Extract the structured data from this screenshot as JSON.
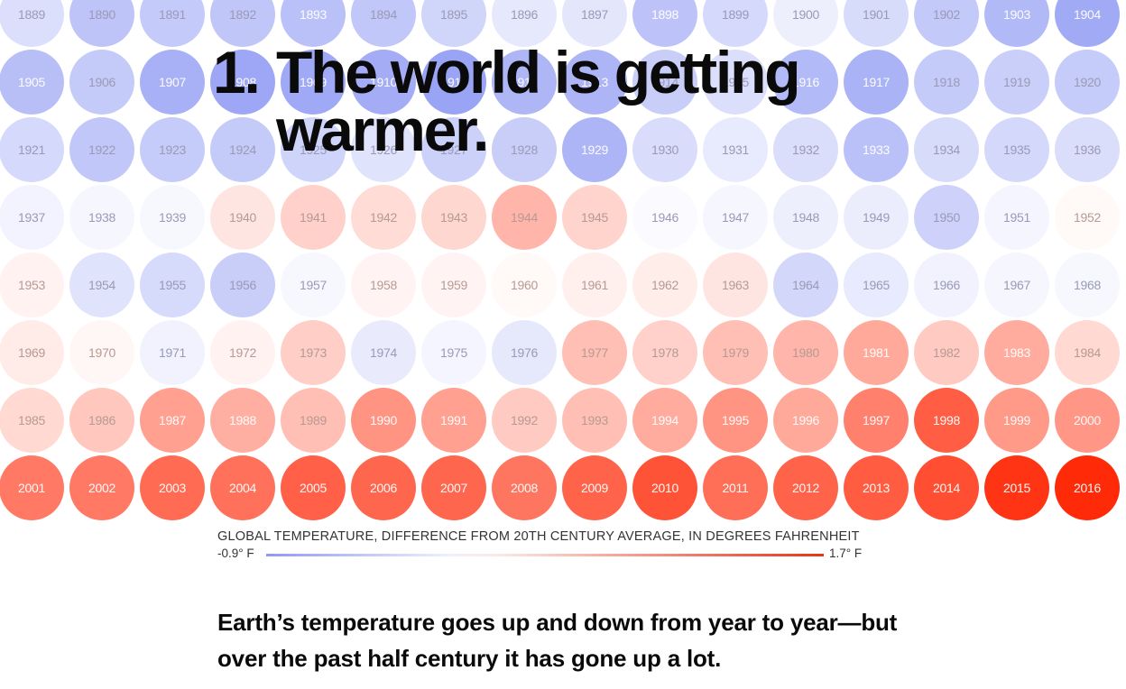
{
  "headline": {
    "number": "1.",
    "text": "The world is getting warmer."
  },
  "chart_data": {
    "type": "heatmap",
    "title": "GLOBAL TEMPERATURE, DIFFERENCE FROM 20TH CENTURY AVERAGE, IN DEGREES FAHRENHEIT",
    "years": [
      1889,
      1890,
      1891,
      1892,
      1893,
      1894,
      1895,
      1896,
      1897,
      1898,
      1899,
      1900,
      1901,
      1902,
      1903,
      1904,
      1905,
      1906,
      1907,
      1908,
      1909,
      1910,
      1911,
      1912,
      1913,
      1914,
      1915,
      1916,
      1917,
      1918,
      1919,
      1920,
      1921,
      1922,
      1923,
      1924,
      1925,
      1926,
      1927,
      1928,
      1929,
      1930,
      1931,
      1932,
      1933,
      1934,
      1935,
      1936,
      1937,
      1938,
      1939,
      1940,
      1941,
      1942,
      1943,
      1944,
      1945,
      1946,
      1947,
      1948,
      1949,
      1950,
      1951,
      1952,
      1953,
      1954,
      1955,
      1956,
      1957,
      1958,
      1959,
      1960,
      1961,
      1962,
      1963,
      1964,
      1965,
      1966,
      1967,
      1968,
      1969,
      1970,
      1971,
      1972,
      1973,
      1974,
      1975,
      1976,
      1977,
      1978,
      1979,
      1980,
      1981,
      1982,
      1983,
      1984,
      1985,
      1986,
      1987,
      1988,
      1989,
      1990,
      1991,
      1992,
      1993,
      1994,
      1995,
      1996,
      1997,
      1998,
      1999,
      2000,
      2001,
      2002,
      2003,
      2004,
      2005,
      2006,
      2007,
      2008,
      2009,
      2010,
      2011,
      2012,
      2013,
      2014,
      2015,
      2016
    ],
    "values": [
      -0.23,
      -0.47,
      -0.42,
      -0.45,
      -0.5,
      -0.44,
      -0.32,
      -0.15,
      -0.17,
      -0.48,
      -0.28,
      -0.1,
      -0.26,
      -0.43,
      -0.58,
      -0.73,
      -0.52,
      -0.41,
      -0.66,
      -0.76,
      -0.74,
      -0.71,
      -0.79,
      -0.61,
      -0.62,
      -0.38,
      -0.23,
      -0.57,
      -0.64,
      -0.41,
      -0.37,
      -0.4,
      -0.28,
      -0.44,
      -0.4,
      -0.41,
      -0.33,
      -0.2,
      -0.35,
      -0.38,
      -0.62,
      -0.25,
      -0.14,
      -0.24,
      -0.5,
      -0.26,
      -0.29,
      -0.24,
      -0.07,
      -0.05,
      -0.04,
      0.12,
      0.25,
      0.18,
      0.21,
      0.45,
      0.23,
      -0.02,
      -0.05,
      -0.1,
      -0.12,
      -0.34,
      -0.06,
      0.02,
      0.05,
      -0.2,
      -0.27,
      -0.38,
      -0.04,
      0.04,
      0.04,
      0.02,
      0.06,
      0.08,
      0.12,
      -0.3,
      -0.14,
      -0.08,
      -0.05,
      -0.04,
      0.09,
      0.03,
      -0.08,
      0.05,
      0.27,
      -0.13,
      -0.06,
      -0.15,
      0.38,
      0.25,
      0.38,
      0.45,
      0.55,
      0.3,
      0.52,
      0.2,
      0.2,
      0.32,
      0.62,
      0.5,
      0.38,
      0.72,
      0.62,
      0.3,
      0.38,
      0.52,
      0.72,
      0.55,
      0.88,
      1.2,
      0.68,
      0.7,
      0.95,
      0.95,
      1.08,
      1.02,
      1.18,
      1.12,
      1.12,
      0.98,
      1.15,
      1.3,
      1.05,
      1.15,
      1.22,
      1.35,
      1.6,
      1.7
    ],
    "color_min": "#8e99f3",
    "color_mid": "#ffffff",
    "color_max": "#ff2a08",
    "scale": {
      "min": -0.9,
      "max": 1.7,
      "min_label": "-0.9° F",
      "max_label": "1.7° F"
    }
  },
  "body": {
    "paragraph": "Earth’s temperature goes up and down from year to year—but over the past half century it has gone up a lot."
  }
}
